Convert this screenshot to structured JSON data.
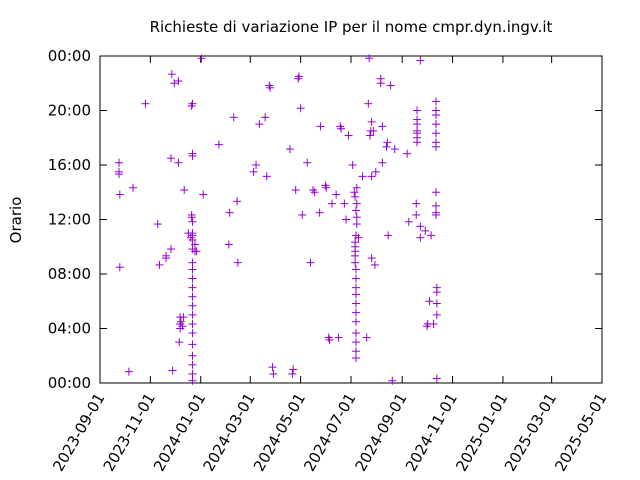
{
  "chart_data": {
    "type": "scatter",
    "title": "Richieste di variazione IP per il nome cmpr.dyn.ingv.it",
    "xlabel": "",
    "ylabel": "Orario",
    "x_type": "date",
    "xlim": [
      "2023-09-01",
      "2025-05-01"
    ],
    "ylim": [
      "00:00",
      "24:00"
    ],
    "x_ticks": [
      "2023-09-01",
      "2023-11-01",
      "2024-01-01",
      "2024-03-01",
      "2024-05-01",
      "2024-07-01",
      "2024-09-01",
      "2024-11-01",
      "2025-01-01",
      "2025-03-01",
      "2025-05-01"
    ],
    "y_ticks": [
      "00:00",
      "04:00",
      "08:00",
      "12:00",
      "16:00",
      "20:00",
      "00:00"
    ],
    "marker": "plus",
    "color": "#9400d3",
    "grid": false,
    "series": [
      {
        "points": [
          [
            "2023-09-24",
            "16:10"
          ],
          [
            "2023-09-24",
            "15:30"
          ],
          [
            "2023-09-24",
            "15:20"
          ],
          [
            "2023-09-25",
            "13:50"
          ],
          [
            "2023-09-25",
            "08:30"
          ],
          [
            "2023-10-06",
            "00:50"
          ],
          [
            "2023-10-11",
            "14:20"
          ],
          [
            "2023-10-26",
            "20:30"
          ],
          [
            "2023-11-10",
            "11:40"
          ],
          [
            "2023-11-12",
            "08:40"
          ],
          [
            "2023-11-20",
            "09:10"
          ],
          [
            "2023-11-20",
            "09:20"
          ],
          [
            "2023-11-26",
            "09:50"
          ],
          [
            "2023-11-26",
            "16:30"
          ],
          [
            "2023-11-27",
            "22:40"
          ],
          [
            "2023-11-28",
            "00:55"
          ],
          [
            "2023-11-30",
            "22:00"
          ],
          [
            "2023-12-05",
            "22:10"
          ],
          [
            "2023-12-05",
            "16:10"
          ],
          [
            "2023-12-06",
            "03:00"
          ],
          [
            "2023-12-07",
            "04:50"
          ],
          [
            "2023-12-07",
            "04:20"
          ],
          [
            "2023-12-07",
            "04:00"
          ],
          [
            "2023-12-08",
            "04:30"
          ],
          [
            "2023-12-10",
            "04:10"
          ],
          [
            "2023-12-11",
            "04:50"
          ],
          [
            "2023-12-12",
            "14:10"
          ],
          [
            "2023-12-17",
            "11:00"
          ],
          [
            "2023-12-20",
            "10:40"
          ],
          [
            "2023-12-21",
            "11:80"
          ],
          [
            "2023-12-21",
            "12:10"
          ],
          [
            "2023-12-21",
            "20:20"
          ],
          [
            "2023-12-22",
            "20:30"
          ],
          [
            "2023-12-22",
            "16:50"
          ],
          [
            "2023-12-22",
            "16:40"
          ],
          [
            "2023-12-22",
            "11:50"
          ],
          [
            "2023-12-22",
            "11:00"
          ],
          [
            "2023-12-22",
            "10:50"
          ],
          [
            "2023-12-22",
            "10:30"
          ],
          [
            "2023-12-22",
            "09:50"
          ],
          [
            "2023-12-22",
            "08:50"
          ],
          [
            "2023-12-22",
            "08:20"
          ],
          [
            "2023-12-22",
            "07:40"
          ],
          [
            "2023-12-22",
            "07:00"
          ],
          [
            "2023-12-22",
            "06:20"
          ],
          [
            "2023-12-22",
            "05:40"
          ],
          [
            "2023-12-22",
            "05:00"
          ],
          [
            "2023-12-22",
            "04:20"
          ],
          [
            "2023-12-22",
            "03:40"
          ],
          [
            "2023-12-22",
            "02:50"
          ],
          [
            "2023-12-22",
            "02:00"
          ],
          [
            "2023-12-22",
            "01:20"
          ],
          [
            "2023-12-22",
            "00:40"
          ],
          [
            "2023-12-22",
            "00:10"
          ],
          [
            "2023-12-25",
            "09:40"
          ],
          [
            "2023-12-25",
            "10:10"
          ],
          [
            "2023-12-27",
            "09:40"
          ],
          [
            "2024-01-02",
            "23:50"
          ],
          [
            "2024-01-04",
            "13:50"
          ],
          [
            "2024-01-23",
            "17:30"
          ],
          [
            "2024-02-04",
            "10:10"
          ],
          [
            "2024-02-05",
            "12:30"
          ],
          [
            "2024-02-10",
            "19:30"
          ],
          [
            "2024-02-14",
            "13:20"
          ],
          [
            "2024-02-15",
            "08:50"
          ],
          [
            "2024-03-05",
            "15:30"
          ],
          [
            "2024-03-08",
            "16:00"
          ],
          [
            "2024-03-12",
            "19:00"
          ],
          [
            "2024-03-19",
            "19:30"
          ],
          [
            "2024-03-21",
            "15:10"
          ],
          [
            "2024-03-24",
            "21:50"
          ],
          [
            "2024-03-25",
            "21:40"
          ],
          [
            "2024-03-28",
            "01:10"
          ],
          [
            "2024-03-29",
            "00:40"
          ],
          [
            "2024-04-18",
            "17:10"
          ],
          [
            "2024-04-21",
            "00:40"
          ],
          [
            "2024-04-22",
            "01:00"
          ],
          [
            "2024-04-25",
            "14:10"
          ],
          [
            "2024-04-28",
            "22:20"
          ],
          [
            "2024-04-29",
            "22:30"
          ],
          [
            "2024-05-01",
            "20:10"
          ],
          [
            "2024-05-03",
            "12:20"
          ],
          [
            "2024-05-09",
            "16:10"
          ],
          [
            "2024-05-13",
            "08:50"
          ],
          [
            "2024-05-16",
            "14:10"
          ],
          [
            "2024-05-18",
            "14:00"
          ],
          [
            "2024-05-24",
            "12:30"
          ],
          [
            "2024-05-25",
            "18:50"
          ],
          [
            "2024-05-31",
            "14:30"
          ],
          [
            "2024-06-01",
            "14:20"
          ],
          [
            "2024-06-04",
            "03:20"
          ],
          [
            "2024-06-05",
            "03:10"
          ],
          [
            "2024-06-08",
            "12:70"
          ],
          [
            "2024-06-13",
            "13:50"
          ],
          [
            "2024-06-16",
            "03:20"
          ],
          [
            "2024-06-18",
            "18:50"
          ],
          [
            "2024-06-19",
            "18:40"
          ],
          [
            "2024-06-23",
            "13:10"
          ],
          [
            "2024-06-25",
            "12:00"
          ],
          [
            "2024-06-28",
            "18:10"
          ],
          [
            "2024-07-03",
            "16:00"
          ],
          [
            "2024-07-05",
            "14:00"
          ],
          [
            "2024-07-06",
            "13:40"
          ],
          [
            "2024-07-06",
            "10:00"
          ],
          [
            "2024-07-06",
            "10:20"
          ],
          [
            "2024-07-06",
            "09:40"
          ],
          [
            "2024-07-06",
            "09:20"
          ],
          [
            "2024-07-06",
            "08:50"
          ],
          [
            "2024-07-07",
            "12:40"
          ],
          [
            "2024-07-07",
            "10:50"
          ],
          [
            "2024-07-07",
            "08:20"
          ],
          [
            "2024-07-07",
            "07:40"
          ],
          [
            "2024-07-07",
            "07:00"
          ],
          [
            "2024-07-07",
            "06:30"
          ],
          [
            "2024-07-07",
            "05:50"
          ],
          [
            "2024-07-07",
            "05:10"
          ],
          [
            "2024-07-07",
            "04:30"
          ],
          [
            "2024-07-07",
            "03:40"
          ],
          [
            "2024-07-07",
            "03:00"
          ],
          [
            "2024-07-07",
            "02:20"
          ],
          [
            "2024-07-07",
            "01:50"
          ],
          [
            "2024-07-08",
            "11:40"
          ],
          [
            "2024-07-08",
            "12:10"
          ],
          [
            "2024-07-08",
            "13:10"
          ],
          [
            "2024-07-08",
            "14:20"
          ],
          [
            "2024-07-10",
            "10:40"
          ],
          [
            "2024-07-15",
            "15:10"
          ],
          [
            "2024-07-20",
            "03:20"
          ],
          [
            "2024-07-22",
            "20:30"
          ],
          [
            "2024-07-23",
            "23:50"
          ],
          [
            "2024-07-24",
            "18:10"
          ],
          [
            "2024-07-25",
            "18:30"
          ],
          [
            "2024-07-26",
            "19:10"
          ],
          [
            "2024-07-26",
            "08:70"
          ],
          [
            "2024-07-26",
            "14:70"
          ],
          [
            "2024-07-28",
            "18:30"
          ],
          [
            "2024-07-30",
            "08:40"
          ],
          [
            "2024-07-31",
            "15:30"
          ],
          [
            "2024-08-06",
            "21:80"
          ],
          [
            "2024-08-06",
            "22:00"
          ],
          [
            "2024-08-08",
            "18:50"
          ],
          [
            "2024-08-08",
            "15:70"
          ],
          [
            "2024-08-13",
            "17:20"
          ],
          [
            "2024-08-14",
            "17:40"
          ],
          [
            "2024-08-15",
            "10:50"
          ],
          [
            "2024-08-18",
            "21:50"
          ],
          [
            "2024-08-20",
            "00:10"
          ],
          [
            "2024-08-23",
            "17:10"
          ],
          [
            "2024-09-07",
            "16:50"
          ],
          [
            "2024-09-09",
            "11:50"
          ],
          [
            "2024-09-18",
            "13:10"
          ],
          [
            "2024-09-18",
            "12:20"
          ],
          [
            "2024-09-19",
            "18:80"
          ],
          [
            "2024-09-19",
            "17:90"
          ],
          [
            "2024-09-19",
            "18:20"
          ],
          [
            "2024-09-19",
            "18:00"
          ],
          [
            "2024-09-19",
            "17:40"
          ],
          [
            "2024-09-19",
            "18:60"
          ],
          [
            "2024-09-19",
            "20:00"
          ],
          [
            "2024-09-23",
            "11:30"
          ],
          [
            "2024-09-23",
            "10:40"
          ],
          [
            "2024-09-23",
            "23:40"
          ],
          [
            "2024-09-29",
            "11:10"
          ],
          [
            "2024-10-01",
            "04:10"
          ],
          [
            "2024-10-02",
            "04:20"
          ],
          [
            "2024-10-04",
            "06:00"
          ],
          [
            "2024-10-06",
            "10:50"
          ],
          [
            "2024-10-09",
            "04:20"
          ],
          [
            "2024-10-12",
            "20:40"
          ],
          [
            "2024-10-12",
            "20:00"
          ],
          [
            "2024-10-12",
            "19:40"
          ],
          [
            "2024-10-12",
            "19:00"
          ],
          [
            "2024-10-12",
            "18:20"
          ],
          [
            "2024-10-12",
            "17:40"
          ],
          [
            "2024-10-12",
            "17:20"
          ],
          [
            "2024-10-12",
            "13:60"
          ],
          [
            "2024-10-12",
            "13:00"
          ],
          [
            "2024-10-12",
            "12:30"
          ],
          [
            "2024-10-12",
            "11:80"
          ],
          [
            "2024-10-13",
            "07:00"
          ],
          [
            "2024-10-13",
            "06:40"
          ],
          [
            "2024-10-13",
            "05:50"
          ],
          [
            "2024-10-13",
            "05:00"
          ],
          [
            "2024-10-13",
            "00:20"
          ]
        ]
      }
    ]
  }
}
